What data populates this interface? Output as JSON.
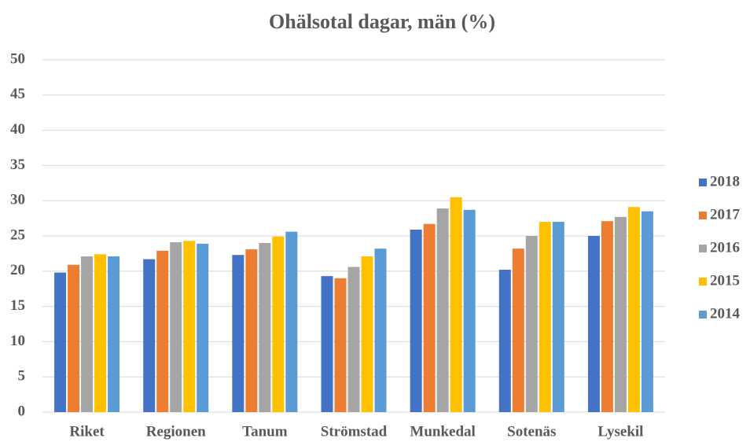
{
  "chart_data": {
    "type": "bar",
    "title": "Ohälsotal dagar, män (%)",
    "categories": [
      "Riket",
      "Regionen",
      "Tanum",
      "Strömstad",
      "Munkedal",
      "Sotenäs",
      "Lysekil"
    ],
    "series": [
      {
        "name": "2018",
        "color": "#4472c4",
        "values": [
          19.8,
          21.7,
          22.3,
          19.3,
          25.9,
          20.2,
          25.0
        ]
      },
      {
        "name": "2017",
        "color": "#ed7d31",
        "values": [
          20.9,
          22.9,
          23.1,
          19.0,
          26.7,
          23.2,
          27.1
        ]
      },
      {
        "name": "2016",
        "color": "#a5a5a5",
        "values": [
          22.1,
          24.1,
          24.0,
          20.6,
          28.9,
          25.0,
          27.7
        ]
      },
      {
        "name": "2015",
        "color": "#ffc000",
        "values": [
          22.4,
          24.3,
          24.9,
          22.1,
          30.5,
          27.0,
          29.1
        ]
      },
      {
        "name": "2014",
        "color": "#5b9bd5",
        "values": [
          22.1,
          23.9,
          25.6,
          23.2,
          28.7,
          27.0,
          28.5
        ]
      }
    ],
    "ylim": [
      0,
      50
    ],
    "yticks": [
      0,
      5,
      10,
      15,
      20,
      25,
      30,
      35,
      40,
      45,
      50
    ],
    "grid": true,
    "legend": "right"
  }
}
